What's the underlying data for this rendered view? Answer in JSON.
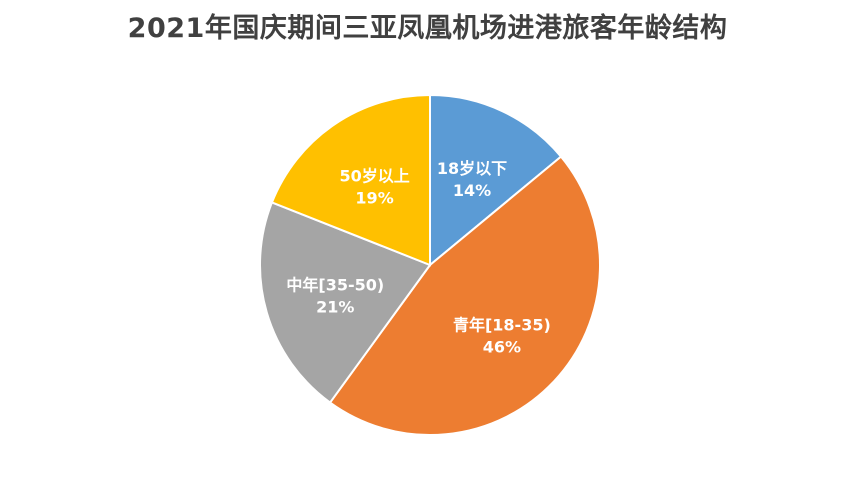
{
  "chart_data": {
    "type": "pie",
    "title": "2021年国庆期间三亚凤凰机场进港旅客年龄结构",
    "slices": [
      {
        "label": "18岁以下",
        "value": 14,
        "value_text": "14%",
        "color": "#5B9BD5",
        "text_color": "#ffffff"
      },
      {
        "label": "青年[18-35)",
        "value": 46,
        "value_text": "46%",
        "color": "#ED7D31",
        "text_color": "#ffffff"
      },
      {
        "label": "中年[35-50)",
        "value": 21,
        "value_text": "21%",
        "color": "#A5A5A5",
        "text_color": "#ffffff"
      },
      {
        "label": "50岁以上",
        "value": 19,
        "value_text": "19%",
        "color": "#FFC000",
        "text_color": "#404040"
      }
    ],
    "start_angle_deg": 0,
    "direction": "clockwise",
    "legend": "none"
  }
}
